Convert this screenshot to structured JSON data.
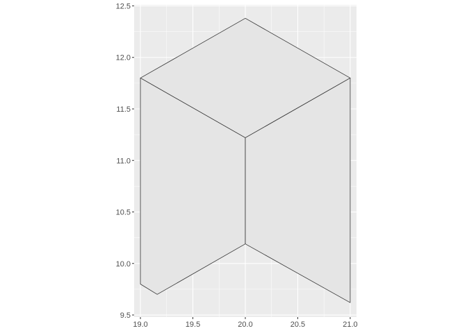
{
  "chart_data": {
    "type": "polygon",
    "title": "",
    "xlabel": "",
    "ylabel": "",
    "xlim": [
      18.94,
      21.06
    ],
    "ylim": [
      9.48,
      12.51
    ],
    "x_ticks": [
      19.0,
      19.5,
      20.0,
      20.5,
      21.0
    ],
    "x_tick_labels": [
      "19.0",
      "19.5",
      "20.0",
      "20.5",
      "21.0"
    ],
    "y_ticks": [
      9.5,
      10.0,
      10.5,
      11.0,
      11.5,
      12.0,
      12.5
    ],
    "y_tick_labels": [
      "9.5",
      "10.0",
      "10.5",
      "11.0",
      "11.5",
      "12.0",
      "12.5"
    ],
    "grid": true,
    "panel_background": "#ebebeb",
    "fill_color": "#e5e5e5",
    "line_color": "#333333",
    "polygons": [
      {
        "name": "top-face",
        "points": [
          [
            19.0,
            11.8
          ],
          [
            20.0,
            12.38
          ],
          [
            21.0,
            11.8
          ],
          [
            20.0,
            11.22
          ]
        ]
      },
      {
        "name": "left-face",
        "points": [
          [
            19.0,
            11.8
          ],
          [
            20.0,
            11.22
          ],
          [
            20.0,
            10.19
          ],
          [
            19.16,
            9.7
          ],
          [
            19.0,
            9.8
          ]
        ]
      },
      {
        "name": "right-face",
        "points": [
          [
            20.0,
            11.22
          ],
          [
            21.0,
            11.8
          ],
          [
            21.0,
            9.62
          ],
          [
            20.0,
            10.19
          ]
        ]
      }
    ]
  }
}
